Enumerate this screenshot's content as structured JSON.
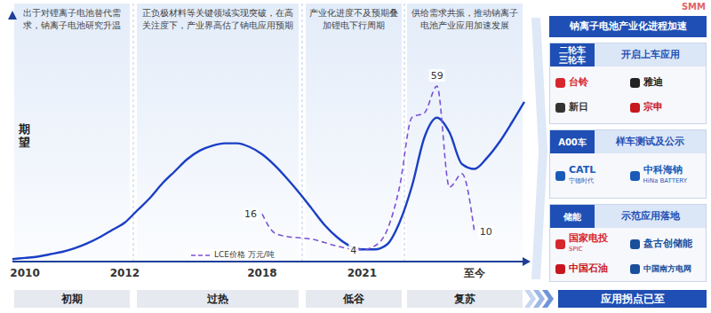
{
  "chart_data": {
    "type": "line",
    "y_label": "期望",
    "categories": [
      null,
      "2010",
      null,
      null,
      null,
      null,
      null,
      null,
      null,
      "2012",
      null,
      null,
      null,
      null,
      null,
      null,
      null,
      null,
      null,
      null,
      "2018",
      null,
      null,
      null,
      null,
      null,
      null,
      null,
      "2021",
      null,
      null,
      null,
      null,
      null,
      null,
      null,
      null,
      "至今",
      null,
      null,
      null,
      null
    ],
    "series": [
      {
        "color": "#1a3fc4",
        "line_style": "solid",
        "marker": "none",
        "values": [
          1,
          1.5,
          2,
          3,
          4,
          5.5,
          7.5,
          10,
          13,
          16,
          21,
          26,
          32,
          37,
          42,
          45.5,
          47.5,
          48.5,
          48.5,
          47,
          44,
          39.5,
          34,
          28,
          21.5,
          15,
          10,
          6.5,
          5,
          5,
          7,
          16,
          31,
          51,
          59,
          53,
          40,
          38,
          42.5,
          49,
          57,
          65.5
        ]
      },
      {
        "name": "LCE价格 万元/吨",
        "color": "#7a52d6",
        "line_style": "dashed",
        "marker": "none",
        "axis": "y2",
        "values": [
          null,
          null,
          null,
          null,
          null,
          null,
          null,
          null,
          null,
          null,
          null,
          null,
          null,
          null,
          null,
          null,
          null,
          null,
          null,
          null,
          16,
          9.6,
          8.4,
          8,
          7.5,
          6.4,
          5.2,
          4.3,
          4,
          5.2,
          10.5,
          25,
          48.5,
          50,
          59,
          25,
          29.5,
          10,
          null,
          null,
          null,
          null
        ],
        "value_labels": [
          null,
          null,
          null,
          null,
          null,
          null,
          null,
          null,
          null,
          null,
          null,
          null,
          null,
          null,
          null,
          null,
          null,
          null,
          null,
          null,
          "16",
          null,
          null,
          null,
          null,
          null,
          null,
          null,
          "4",
          null,
          null,
          null,
          null,
          null,
          "59",
          null,
          null,
          "10",
          null,
          null,
          null,
          null
        ]
      }
    ],
    "ylim": [
      0,
      100
    ],
    "y2lim": [
      0,
      82
    ],
    "tick_labels": "x",
    "grid": false,
    "legend": "bottom"
  },
  "phase_notes": [
    "出于对锂离子电池替代需求，钠离子电池研究升温",
    "正负极材料等关键领域实现突破，在高关注度下，产业界高估了钠电应用预期",
    "产业化进度不及预期叠加锂电下行周期",
    "供给需求共振，推动钠离子电池产业应用加速发展"
  ],
  "phases": [
    "初期",
    "过热",
    "低谷",
    "复苏"
  ],
  "side_panel": {
    "title": "钠离子电池产业化进程加速",
    "sections": [
      {
        "label": [
          "二轮车",
          "三轮车"
        ],
        "status": "开启上车应用",
        "logos": [
          {
            "text": "台铃"
          },
          {
            "text": "雅迪"
          },
          {
            "text": "新日"
          },
          {
            "text": "宗申"
          }
        ]
      },
      {
        "label": [
          "A00车"
        ],
        "status": "样车测试及公示",
        "logos": [
          {
            "text": "CATL",
            "sub": "宁德时代"
          },
          {
            "text": "中科海钠",
            "sub": "HiNa BATTERY"
          }
        ]
      },
      {
        "label": [
          "储能"
        ],
        "status": "示范应用落地",
        "logos": [
          {
            "text": "国家电投",
            "sub": "SPIC"
          },
          {
            "text": "盘古创储能"
          },
          {
            "text": "中国石油"
          },
          {
            "text": "中国南方电网"
          }
        ]
      }
    ],
    "conclusion": "应用拐点已至"
  },
  "watermark": "SMM"
}
